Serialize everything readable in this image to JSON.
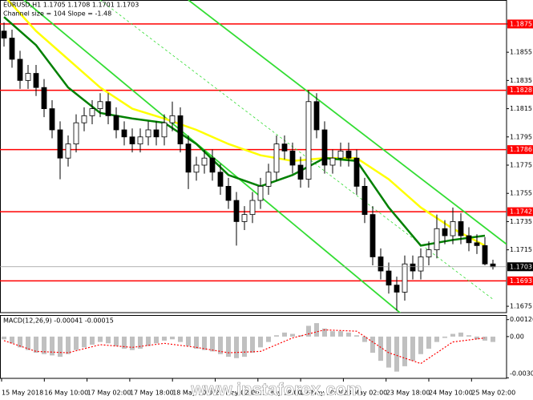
{
  "chart_data": {
    "type": "candlestick",
    "title": "EURUSD,H1  1.1705 1.1708 1.1701 1.1703",
    "subtitle": "Channel size = 104 Slope = -1.48",
    "open": [
      1.187,
      1.1865,
      1.185,
      1.1835,
      1.184,
      1.183,
      1.1815,
      1.18,
      1.178,
      1.179,
      1.1805,
      1.181,
      1.1815,
      1.182,
      1.181,
      1.18,
      1.1795,
      1.179,
      1.1795,
      1.18,
      1.1795,
      1.1805,
      1.181,
      1.179,
      1.177,
      1.1775,
      1.178,
      1.177,
      1.176,
      1.175,
      1.1735,
      1.174,
      1.175,
      1.176,
      1.177,
      1.179,
      1.1785,
      1.1775,
      1.1765,
      1.182,
      1.18,
      1.1775,
      1.178,
      1.1785,
      1.178,
      1.176,
      1.174,
      1.171,
      1.17,
      1.169,
      1.1685,
      1.1705,
      1.17,
      1.171,
      1.1715,
      1.173,
      1.1725,
      1.1735,
      1.1725,
      1.172,
      1.1718,
      1.1705
    ],
    "high": [
      1.1876,
      1.1871,
      1.1856,
      1.1846,
      1.1846,
      1.1836,
      1.1821,
      1.1806,
      1.1796,
      1.1811,
      1.1816,
      1.1821,
      1.1826,
      1.1826,
      1.1816,
      1.1806,
      1.1801,
      1.1801,
      1.1806,
      1.1806,
      1.1811,
      1.182,
      1.1816,
      1.1796,
      1.1781,
      1.1786,
      1.1786,
      1.1776,
      1.1766,
      1.1756,
      1.1746,
      1.1756,
      1.1766,
      1.1776,
      1.1796,
      1.1796,
      1.1791,
      1.1781,
      1.1828,
      1.1826,
      1.1806,
      1.1786,
      1.1791,
      1.1791,
      1.1786,
      1.1766,
      1.1746,
      1.1716,
      1.1706,
      1.1696,
      1.1711,
      1.1711,
      1.1716,
      1.1721,
      1.174,
      1.1736,
      1.1745,
      1.1741,
      1.1731,
      1.1726,
      1.1724,
      1.1708
    ],
    "low": [
      1.1859,
      1.1844,
      1.1829,
      1.1829,
      1.1824,
      1.1809,
      1.1794,
      1.1765,
      1.1774,
      1.1784,
      1.1799,
      1.1804,
      1.1809,
      1.1804,
      1.1794,
      1.1789,
      1.1784,
      1.1784,
      1.1789,
      1.1789,
      1.1789,
      1.1799,
      1.1784,
      1.1758,
      1.1764,
      1.1769,
      1.1764,
      1.1754,
      1.1744,
      1.1718,
      1.1729,
      1.1734,
      1.1744,
      1.1754,
      1.1764,
      1.1779,
      1.1769,
      1.1759,
      1.1759,
      1.1794,
      1.1769,
      1.1769,
      1.1774,
      1.1774,
      1.1754,
      1.1734,
      1.1704,
      1.1694,
      1.1684,
      1.1672,
      1.1679,
      1.1694,
      1.1694,
      1.1704,
      1.1709,
      1.1719,
      1.1719,
      1.1719,
      1.1714,
      1.1712,
      1.1704,
      1.1701
    ],
    "close": [
      1.1865,
      1.185,
      1.1835,
      1.184,
      1.183,
      1.1815,
      1.18,
      1.178,
      1.179,
      1.1805,
      1.181,
      1.1815,
      1.182,
      1.181,
      1.18,
      1.1795,
      1.179,
      1.1795,
      1.18,
      1.1795,
      1.1805,
      1.181,
      1.179,
      1.177,
      1.1775,
      1.178,
      1.177,
      1.176,
      1.175,
      1.1735,
      1.174,
      1.175,
      1.176,
      1.177,
      1.179,
      1.1785,
      1.1775,
      1.1765,
      1.182,
      1.18,
      1.1775,
      1.178,
      1.1785,
      1.178,
      1.176,
      1.174,
      1.171,
      1.17,
      1.169,
      1.1685,
      1.1705,
      1.17,
      1.171,
      1.1715,
      1.173,
      1.1725,
      1.1735,
      1.1725,
      1.172,
      1.1718,
      1.1705,
      1.1703
    ],
    "ylim": [
      1.16705,
      1.1892
    ],
    "yticks": [
      1.1875,
      1.1855,
      1.1835,
      1.1815,
      1.1795,
      1.1775,
      1.1755,
      1.1735,
      1.1715,
      1.1675
    ],
    "x_labels": [
      "15 May 2018",
      "16 May 10:00",
      "17 May 02:00",
      "17 May 18:00",
      "18 May 10:00",
      "21 May 02:00",
      "21 May 18:00",
      "22 May 10:00",
      "23 May 02:00",
      "23 May 18:00",
      "24 May 10:00",
      "25 May 02:00"
    ],
    "levels": [
      1.1875,
      1.1828,
      1.1786,
      1.1742,
      1.1693
    ],
    "level_color": "#ff0000",
    "last_price": 1.1703,
    "moving_averages": [
      {
        "color": "#ffff00",
        "x": [
          0,
          4,
          8,
          12,
          16,
          20,
          24,
          28,
          32,
          36,
          40,
          44,
          48,
          52,
          56,
          60
        ],
        "values": [
          1.1895,
          1.187,
          1.185,
          1.183,
          1.1815,
          1.1808,
          1.18,
          1.179,
          1.1782,
          1.1778,
          1.178,
          1.178,
          1.1765,
          1.1745,
          1.173,
          1.1718
        ]
      },
      {
        "color": "#008000",
        "x": [
          0,
          4,
          8,
          12,
          16,
          20,
          24,
          28,
          32,
          36,
          40,
          44,
          48,
          52,
          56,
          60
        ],
        "values": [
          1.188,
          1.186,
          1.183,
          1.1812,
          1.1808,
          1.1805,
          1.179,
          1.1768,
          1.176,
          1.1768,
          1.178,
          1.1778,
          1.1745,
          1.1718,
          1.1722,
          1.1725
        ]
      }
    ],
    "channels": [
      {
        "color": "#33dd33",
        "dash": false,
        "x": [
          23,
          62.7
        ],
        "values": [
          1.1892,
          1.1719
        ]
      },
      {
        "color": "#33dd33",
        "dash": false,
        "x": [
          2.5,
          49.5
        ],
        "values": [
          1.1892,
          1.167
        ]
      },
      {
        "color": "#33dd33",
        "dash": true,
        "x": [
          12,
          61
        ],
        "values": [
          1.1892,
          1.168
        ]
      }
    ],
    "macd": {
      "title": "MACD(12,26,9) -0.00041 -0.00015",
      "ylim": [
        -0.0031,
        0.0016
      ],
      "yticks": [
        0.00126,
        {
          "value": 0,
          "label": "0.00"
        },
        -0.00306
      ],
      "histogram": [
        -0.0002,
        -0.0005,
        -0.0008,
        -0.001,
        -0.0012,
        -0.0013,
        -0.0014,
        -0.0015,
        -0.0013,
        -0.001,
        -0.0008,
        -0.0006,
        -0.0004,
        -0.0005,
        -0.0007,
        -0.0009,
        -0.001,
        -0.0009,
        -0.0007,
        -0.0005,
        -0.0003,
        -0.0002,
        -0.0004,
        -0.0007,
        -0.0009,
        -0.001,
        -0.0011,
        -0.0013,
        -0.0015,
        -0.0016,
        -0.0015,
        -0.0012,
        -0.0008,
        -0.0004,
        0.0001,
        0.0003,
        0.0002,
        0.0001,
        0.0008,
        0.001,
        0.0006,
        0.0004,
        0.0004,
        0.0003,
        0.0001,
        -0.0004,
        -0.0012,
        -0.0018,
        -0.0023,
        -0.0026,
        -0.0022,
        -0.0018,
        -0.0013,
        -0.0009,
        -0.0004,
        -0.0001,
        0.0002,
        0.0003,
        0.0001,
        -0.0002,
        -0.0003,
        -0.0004
      ],
      "histogram_color": "#c0c0c0",
      "signal": {
        "color": "#ff0000",
        "x": [
          0,
          4,
          8,
          12,
          16,
          20,
          24,
          28,
          32,
          36,
          40,
          44,
          48,
          52,
          56,
          60
        ],
        "values": [
          -0.0003,
          -0.0011,
          -0.0012,
          -0.0006,
          -0.0008,
          -0.0005,
          -0.0008,
          -0.0012,
          -0.0011,
          -0.0001,
          0.0005,
          0.0004,
          -0.0012,
          -0.002,
          -0.0004,
          -0.0001
        ]
      }
    }
  },
  "watermark": "www.instaforex.com"
}
